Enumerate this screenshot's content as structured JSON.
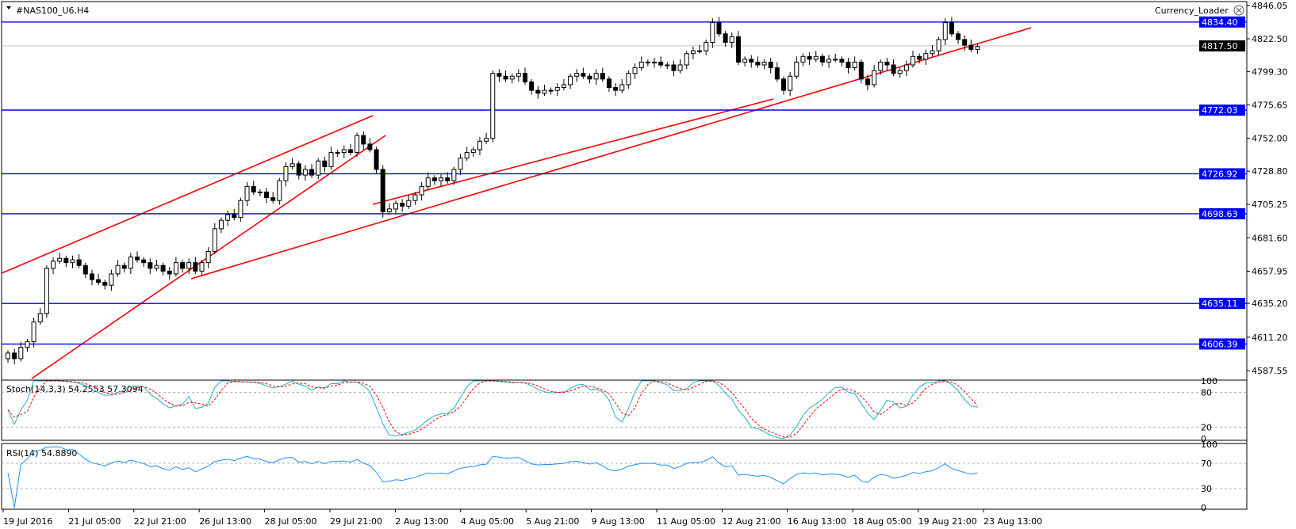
{
  "window": {
    "title": "#NAS100_U6,H4",
    "indicator_name": "Currency_Loader"
  },
  "colors": {
    "level_line": "#0000ff",
    "trend_line": "#ff0000",
    "stoch_main": "#20b2c0",
    "stoch_signal": "#ff0000",
    "rsi": "#1e90ff",
    "candle_bull_fill": "#ffffff",
    "candle_bear_fill": "#000000"
  },
  "main_panel": {
    "price_labels": [
      "4846.05",
      "4822.50",
      "4799.30",
      "4775.65",
      "4752.00",
      "4728.80",
      "4705.25",
      "4681.60",
      "4657.95",
      "4635.20",
      "4611.20",
      "4587.55"
    ],
    "current_price": "4817.50",
    "levels": [
      "4834.40",
      "4772.03",
      "4726.92",
      "4698.63",
      "4635.11",
      "4606.39"
    ]
  },
  "stoch_panel": {
    "label": "Stoch(14,3,3) 54.2553 57.3094",
    "scale_labels": [
      "100",
      "80",
      "20",
      "0"
    ],
    "levels": [
      80,
      20
    ]
  },
  "rsi_panel": {
    "label": "RSI(14) 54.8890",
    "scale_labels": [
      "100",
      "70",
      "30",
      "0"
    ],
    "levels": [
      70,
      30
    ]
  },
  "time_axis": {
    "labels": [
      "19 Jul 2016",
      "21 Jul 05:00",
      "22 Jul 21:00",
      "26 Jul 13:00",
      "28 Jul 05:00",
      "29 Jul 21:00",
      "2 Aug 13:00",
      "4 Aug 05:00",
      "5 Aug 21:00",
      "9 Aug 13:00",
      "11 Aug 05:00",
      "12 Aug 21:00",
      "16 Aug 13:00",
      "18 Aug 05:00",
      "19 Aug 21:00",
      "23 Aug 13:00"
    ]
  },
  "chart_data": {
    "type": "candlestick",
    "symbol": "#NAS100_U6",
    "timeframe": "H4",
    "ylim": [
      4580,
      4850
    ],
    "close_series": [
      4600,
      4596,
      4604,
      4608,
      4622,
      4628,
      4660,
      4665,
      4667,
      4664,
      4666,
      4662,
      4656,
      4652,
      4650,
      4648,
      4656,
      4662,
      4660,
      4668,
      4666,
      4664,
      4660,
      4662,
      4658,
      4656,
      4664,
      4660,
      4664,
      4658,
      4664,
      4672,
      4688,
      4694,
      4698,
      4696,
      4708,
      4718,
      4714,
      4714,
      4710,
      4708,
      4722,
      4732,
      4734,
      4726,
      4730,
      4726,
      4736,
      4732,
      4742,
      4742,
      4744,
      4742,
      4754,
      4748,
      4744,
      4730,
      4700,
      4702,
      4706,
      4704,
      4708,
      4712,
      4718,
      4724,
      4722,
      4724,
      4722,
      4730,
      4738,
      4742,
      4744,
      4750,
      4752,
      4798,
      4796,
      4794,
      4796,
      4798,
      4792,
      4786,
      4784,
      4786,
      4786,
      4788,
      4790,
      4796,
      4798,
      4796,
      4794,
      4798,
      4794,
      4788,
      4786,
      4790,
      4798,
      4802,
      4806,
      4806,
      4806,
      4804,
      4804,
      4800,
      4804,
      4812,
      4814,
      4814,
      4820,
      4834,
      4826,
      4820,
      4824,
      4806,
      4808,
      4806,
      4804,
      4806,
      4802,
      4794,
      4786,
      4796,
      4806,
      4810,
      4808,
      4810,
      4806,
      4808,
      4808,
      4806,
      4802,
      4806,
      4794,
      4790,
      4800,
      4806,
      4804,
      4798,
      4800,
      4804,
      4810,
      4808,
      4812,
      4814,
      4822,
      4834,
      4826,
      4822,
      4818,
      4815,
      4817
    ],
    "horizontal_levels": [
      4834.4,
      4772.03,
      4726.92,
      4698.63,
      4635.11,
      4606.39
    ],
    "current_price": 4817.5,
    "stoch": {
      "main": 54.2553,
      "signal": 57.3094,
      "levels": [
        20,
        80
      ]
    },
    "rsi": {
      "value": 54.889,
      "levels": [
        30,
        70
      ]
    }
  }
}
